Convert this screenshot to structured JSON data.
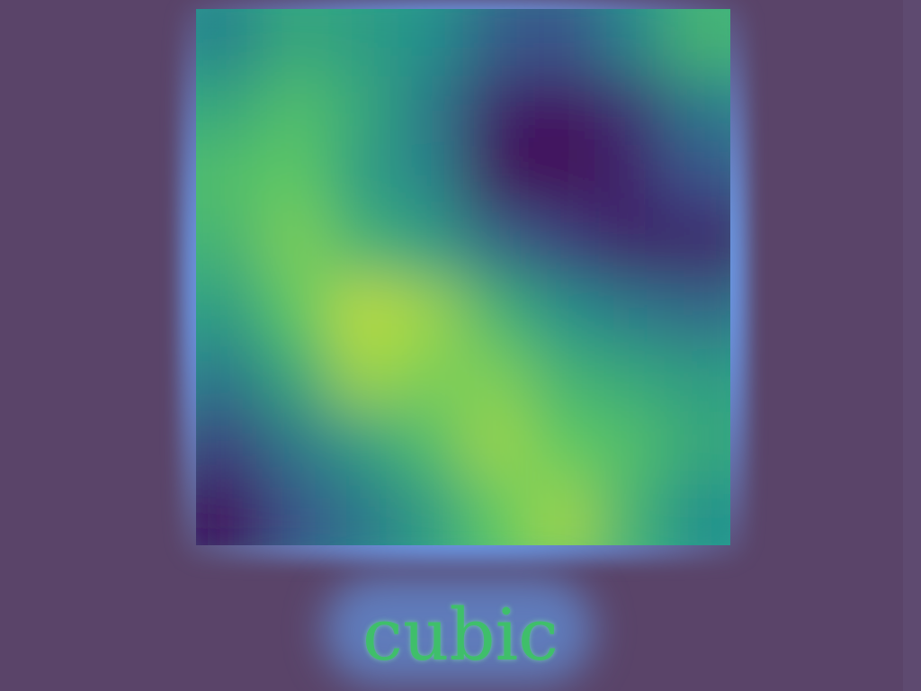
{
  "caption": "cubic",
  "colors": {
    "background": "#5a4469",
    "border_glow": "#6eaaff",
    "caption_text": "#3fbf6a"
  },
  "chart_data": {
    "type": "heatmap",
    "title": "cubic",
    "colormap": "viridis",
    "grid": false,
    "rows": 8,
    "cols": 8,
    "values": [
      [
        0.45,
        0.6,
        0.55,
        0.5,
        0.3,
        0.25,
        0.45,
        0.65
      ],
      [
        0.6,
        0.7,
        0.6,
        0.4,
        0.1,
        0.05,
        0.15,
        0.4
      ],
      [
        0.7,
        0.75,
        0.55,
        0.45,
        0.05,
        0.02,
        0.1,
        0.25
      ],
      [
        0.65,
        0.8,
        0.65,
        0.55,
        0.35,
        0.2,
        0.1,
        0.1
      ],
      [
        0.55,
        0.75,
        0.9,
        0.85,
        0.65,
        0.5,
        0.4,
        0.35
      ],
      [
        0.4,
        0.6,
        0.85,
        0.8,
        0.8,
        0.65,
        0.6,
        0.55
      ],
      [
        0.2,
        0.4,
        0.55,
        0.7,
        0.85,
        0.75,
        0.7,
        0.6
      ],
      [
        0.05,
        0.25,
        0.4,
        0.55,
        0.75,
        0.85,
        0.65,
        0.5
      ]
    ]
  }
}
